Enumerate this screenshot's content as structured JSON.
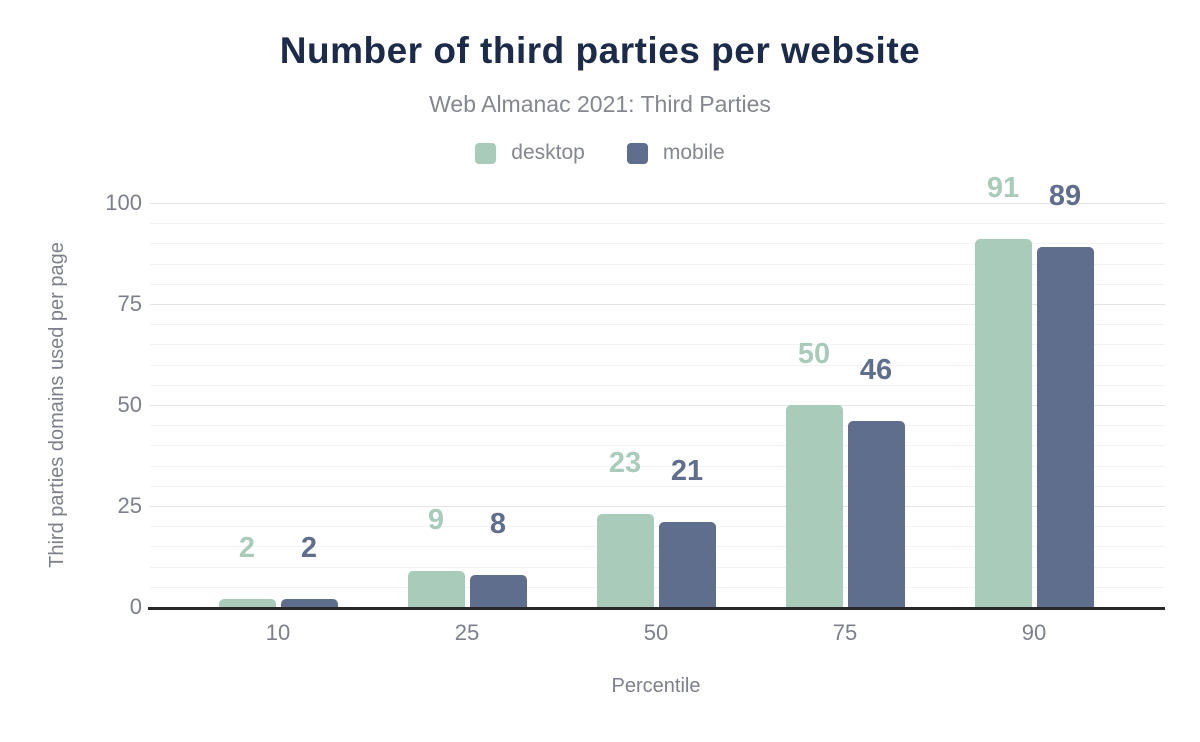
{
  "title": "Number of third parties per website",
  "subtitle": "Web Almanac 2021: Third Parties",
  "colors": {
    "title_text": "#1b2b49",
    "muted_text": "#85878f",
    "axis_text": "#7d808a",
    "axis_line": "#28282a",
    "grid_minor": "#f3f3f4",
    "grid_major": "#e4e4e6",
    "desktop": "#a8cbba",
    "mobile": "#5f6e8c"
  },
  "chart_data": {
    "type": "bar",
    "title": "Number of third parties per website",
    "subtitle": "Web Almanac 2021: Third Parties",
    "categories": [
      "10",
      "25",
      "50",
      "75",
      "90"
    ],
    "series": [
      {
        "name": "desktop",
        "color": "#a8cbba",
        "values": [
          2,
          9,
          23,
          50,
          91
        ]
      },
      {
        "name": "mobile",
        "color": "#5f6e8c",
        "values": [
          2,
          8,
          21,
          46,
          89
        ]
      }
    ],
    "xlabel": "Percentile",
    "ylabel": "Third parties domains used per page",
    "ylim": [
      0,
      100
    ],
    "yticks": [
      0,
      25,
      50,
      75,
      100
    ],
    "grid": "horizontal minor lines every 5 units, major lines every 25 units",
    "legend_position": "top center",
    "value_labels": "above each bar, colored to match series"
  }
}
